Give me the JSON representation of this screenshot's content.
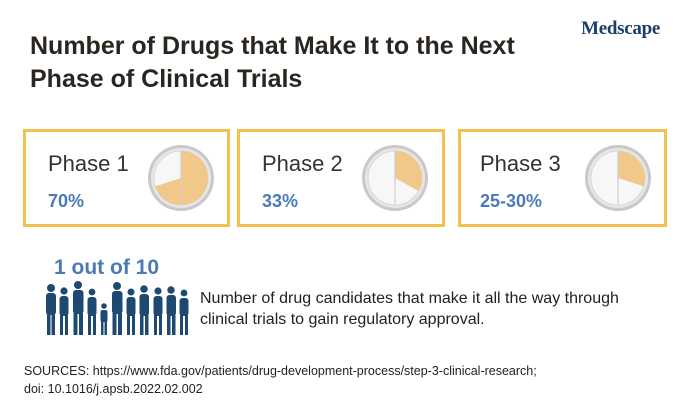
{
  "title": "Number of Drugs that Make It to the Next Phase of Clinical Trials",
  "logo": "Medscape",
  "phases": [
    {
      "label": "Phase 1",
      "value": "70%",
      "fraction": 0.7
    },
    {
      "label": "Phase 2",
      "value": "33%",
      "fraction": 0.33
    },
    {
      "label": "Phase 3",
      "value": "25-30%",
      "fraction": 0.3
    }
  ],
  "highlight": {
    "stat": "1 out of 10",
    "description": "Number of drug candidates that make it all the way through clinical trials to gain regulatory approval."
  },
  "sources": {
    "line1": "SOURCES: https://www.fda.gov/patients/drug-development-process/step-3-clinical-research;",
    "line2": "doi: 10.1016/j.apsb.2022.02.002"
  },
  "colors": {
    "card_border": "#f2c14e",
    "accent_blue": "#4a7bb7",
    "pie_fill": "#f2c78a",
    "silhouette": "#1e4a72"
  },
  "icons": {
    "pie": "pie-chart-icon",
    "people": "people-silhouettes-icon"
  }
}
